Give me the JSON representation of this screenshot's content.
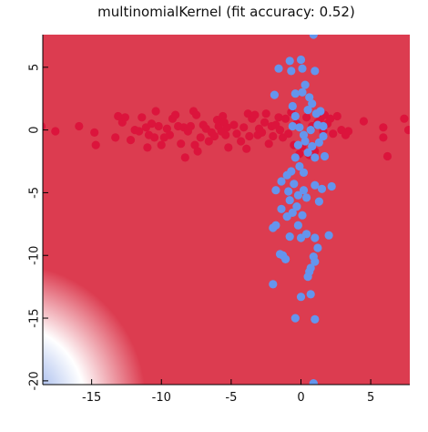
{
  "colors": {
    "class_a": "#dc143c",
    "class_b": "#6495ed",
    "region_a": "#dc3c50",
    "region_edge": "#ffffff",
    "region_b": "#5078e0"
  },
  "chart_data": {
    "type": "scatter",
    "title": "multinomialKernel (fit accuracy: 0.52)",
    "xlabel": "",
    "ylabel": "",
    "xlim": [
      -18.5,
      7.8
    ],
    "ylim": [
      -20.3,
      7.6
    ],
    "x_ticks": [
      -15,
      -10,
      -5,
      0,
      5
    ],
    "y_ticks": [
      5,
      0,
      -5,
      -10,
      -15,
      -20
    ],
    "x_tick_labels": [
      "-15",
      "-10",
      "-5",
      "0",
      "5"
    ],
    "y_tick_labels": [
      "5",
      "0",
      "-5",
      "-10",
      "-15",
      "-20"
    ],
    "grid": false,
    "legend": "none",
    "background": "decision-region heatmap: red region covering most of the plot, fading to white and a light blue region in the lower-left corner",
    "series": [
      {
        "color": "#dc143c",
        "points": [
          [
            -18.6,
            0.3
          ],
          [
            -17.6,
            -0.1
          ],
          [
            -15.9,
            0.3
          ],
          [
            -14.8,
            -0.2
          ],
          [
            -14.7,
            -1.2
          ],
          [
            -13.3,
            -0.6
          ],
          [
            -13.1,
            1.1
          ],
          [
            -12.8,
            0.6
          ],
          [
            -12.6,
            1.0
          ],
          [
            -12.2,
            -0.8
          ],
          [
            -11.9,
            0.0
          ],
          [
            -11.6,
            -0.1
          ],
          [
            -11.4,
            1.0
          ],
          [
            -11.1,
            0.2
          ],
          [
            -11.0,
            -1.4
          ],
          [
            -10.9,
            -0.4
          ],
          [
            -10.7,
            0.5
          ],
          [
            -10.5,
            -0.6
          ],
          [
            -10.4,
            1.5
          ],
          [
            -10.2,
            0.3
          ],
          [
            -10.0,
            -1.2
          ],
          [
            -9.8,
            -0.6
          ],
          [
            -9.6,
            0.1
          ],
          [
            -9.4,
            -0.4
          ],
          [
            -9.2,
            0.9
          ],
          [
            -9.0,
            1.2
          ],
          [
            -8.8,
            0.3
          ],
          [
            -8.6,
            -1.1
          ],
          [
            -8.4,
            0.2
          ],
          [
            -8.3,
            -2.2
          ],
          [
            -8.1,
            -0.1
          ],
          [
            -7.9,
            0.3
          ],
          [
            -7.7,
            1.5
          ],
          [
            -7.6,
            -1.2
          ],
          [
            -7.5,
            1.2
          ],
          [
            -7.4,
            -1.7
          ],
          [
            -7.2,
            -0.6
          ],
          [
            -7.0,
            0.4
          ],
          [
            -6.8,
            0.1
          ],
          [
            -6.6,
            -0.9
          ],
          [
            -6.4,
            -0.2
          ],
          [
            -6.2,
            -0.5
          ],
          [
            -6.0,
            0.8
          ],
          [
            -5.9,
            0.3
          ],
          [
            -5.7,
            -0.1
          ],
          [
            -5.6,
            1.1
          ],
          [
            -5.5,
            0.6
          ],
          [
            -5.4,
            -0.4
          ],
          [
            -5.3,
            0.2
          ],
          [
            -5.2,
            -1.4
          ],
          [
            -4.8,
            0.4
          ],
          [
            -4.6,
            -0.3
          ],
          [
            -4.3,
            -0.9
          ],
          [
            -4.1,
            0.2
          ],
          [
            -3.9,
            -1.5
          ],
          [
            -3.8,
            1.3
          ],
          [
            -3.7,
            -0.5
          ],
          [
            -3.5,
            0.9
          ],
          [
            -3.3,
            1.2
          ],
          [
            -3.1,
            -0.4
          ],
          [
            -3.0,
            0.1
          ],
          [
            -2.8,
            -0.2
          ],
          [
            -2.6,
            0.6
          ],
          [
            -2.5,
            1.3
          ],
          [
            -2.3,
            -1.1
          ],
          [
            -2.1,
            0.3
          ],
          [
            -2.0,
            -0.5
          ],
          [
            -1.8,
            0.4
          ],
          [
            -1.6,
            1.0
          ],
          [
            -1.5,
            0.0
          ],
          [
            -1.3,
            -0.6
          ],
          [
            -1.1,
            0.9
          ],
          [
            -0.9,
            -0.3
          ],
          [
            -0.7,
            1.4
          ],
          [
            -0.5,
            -1.2
          ],
          [
            -0.3,
            0.5
          ],
          [
            -0.1,
            -1.9
          ],
          [
            0.1,
            -1.3
          ],
          [
            0.4,
            1.0
          ],
          [
            0.6,
            -2.0
          ],
          [
            0.8,
            0.3
          ],
          [
            1.0,
            -1.7
          ],
          [
            1.2,
            0.6
          ],
          [
            1.4,
            0.9
          ],
          [
            1.6,
            -0.1
          ],
          [
            1.7,
            1.2
          ],
          [
            1.9,
            0.5
          ],
          [
            2.1,
            0.9
          ],
          [
            2.3,
            -0.3
          ],
          [
            2.6,
            1.1
          ],
          [
            2.9,
            0.0
          ],
          [
            3.2,
            -0.4
          ],
          [
            3.4,
            -0.1
          ],
          [
            4.5,
            0.7
          ],
          [
            5.9,
            0.2
          ],
          [
            5.9,
            -0.6
          ],
          [
            6.2,
            -2.1
          ],
          [
            7.4,
            0.9
          ],
          [
            7.7,
            0.0
          ]
        ]
      },
      {
        "color": "#6495ed",
        "points": [
          [
            0.9,
            7.6
          ],
          [
            -1.6,
            4.9
          ],
          [
            -0.8,
            5.5
          ],
          [
            -0.7,
            4.7
          ],
          [
            0.0,
            5.6
          ],
          [
            0.1,
            4.9
          ],
          [
            1.0,
            4.7
          ],
          [
            -1.9,
            2.8
          ],
          [
            -0.6,
            1.9
          ],
          [
            -0.4,
            1.1
          ],
          [
            -0.6,
            0.3
          ],
          [
            -0.4,
            2.9
          ],
          [
            0.1,
            3.0
          ],
          [
            0.3,
            3.6
          ],
          [
            0.5,
            1.6
          ],
          [
            0.6,
            2.6
          ],
          [
            0.8,
            2.1
          ],
          [
            1.1,
            1.3
          ],
          [
            1.2,
            0.4
          ],
          [
            1.4,
            1.5
          ],
          [
            1.6,
            0.3
          ],
          [
            -0.2,
            -1.2
          ],
          [
            -0.1,
            0.2
          ],
          [
            0.2,
            -0.4
          ],
          [
            0.3,
            -0.9
          ],
          [
            0.5,
            -1.8
          ],
          [
            0.7,
            0.0
          ],
          [
            0.8,
            -1.3
          ],
          [
            1.0,
            -2.2
          ],
          [
            1.3,
            -1.0
          ],
          [
            1.6,
            -0.5
          ],
          [
            1.7,
            -2.1
          ],
          [
            -0.4,
            -2.2
          ],
          [
            -0.1,
            -2.9
          ],
          [
            0.2,
            -3.4
          ],
          [
            -0.7,
            -3.3
          ],
          [
            -1.0,
            -3.6
          ],
          [
            -1.4,
            -4.1
          ],
          [
            -1.8,
            -4.8
          ],
          [
            -0.9,
            -4.9
          ],
          [
            -0.5,
            -4.3
          ],
          [
            -0.2,
            -5.2
          ],
          [
            0.2,
            -4.8
          ],
          [
            -0.8,
            -5.6
          ],
          [
            0.4,
            -5.4
          ],
          [
            1.0,
            -4.4
          ],
          [
            1.3,
            -5.7
          ],
          [
            1.5,
            -4.7
          ],
          [
            2.2,
            -4.5
          ],
          [
            -0.3,
            -6.1
          ],
          [
            0.1,
            -6.8
          ],
          [
            -1.4,
            -6.3
          ],
          [
            -1.0,
            -6.9
          ],
          [
            -0.6,
            -6.6
          ],
          [
            -2.0,
            -7.8
          ],
          [
            -1.8,
            -7.6
          ],
          [
            -0.2,
            -7.6
          ],
          [
            0.4,
            -8.3
          ],
          [
            -0.8,
            -8.5
          ],
          [
            0.0,
            -8.6
          ],
          [
            1.0,
            -8.6
          ],
          [
            2.0,
            -8.4
          ],
          [
            1.2,
            -9.4
          ],
          [
            -1.5,
            -9.9
          ],
          [
            -1.1,
            -10.3
          ],
          [
            -1.3,
            -10.0
          ],
          [
            0.9,
            -10.1
          ],
          [
            1.0,
            -10.5
          ],
          [
            0.6,
            -11.3
          ],
          [
            0.7,
            -11.0
          ],
          [
            0.5,
            -11.7
          ],
          [
            -2.0,
            -12.3
          ],
          [
            0.0,
            -13.3
          ],
          [
            0.7,
            -13.1
          ],
          [
            -0.4,
            -15.0
          ],
          [
            1.0,
            -15.1
          ],
          [
            0.9,
            -20.2
          ]
        ]
      }
    ]
  }
}
